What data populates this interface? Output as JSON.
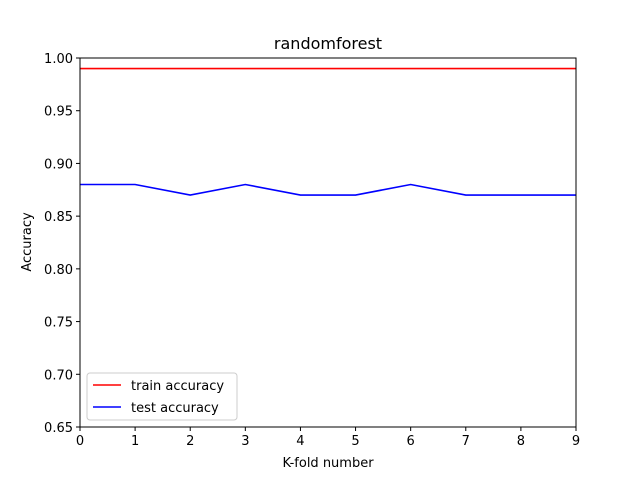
{
  "chart_data": {
    "type": "line",
    "title": "randomforest",
    "xlabel": "K-fold number",
    "ylabel": "Accuracy",
    "x": [
      0,
      1,
      2,
      3,
      4,
      5,
      6,
      7,
      8,
      9
    ],
    "xlim": [
      0,
      9
    ],
    "ylim": [
      0.65,
      1.0
    ],
    "xticks": [
      "0",
      "1",
      "2",
      "3",
      "4",
      "5",
      "6",
      "7",
      "8",
      "9"
    ],
    "yticks": [
      "0.65",
      "0.70",
      "0.75",
      "0.80",
      "0.85",
      "0.90",
      "0.95",
      "1.00"
    ],
    "grid": false,
    "legend_position": "lower-left",
    "series": [
      {
        "name": "train accuracy",
        "color": "#ff0000",
        "values": [
          0.99,
          0.99,
          0.99,
          0.99,
          0.99,
          0.99,
          0.99,
          0.99,
          0.99,
          0.99
        ]
      },
      {
        "name": "test accuracy",
        "color": "#0000ff",
        "values": [
          0.88,
          0.88,
          0.87,
          0.88,
          0.87,
          0.87,
          0.88,
          0.87,
          0.87,
          0.87
        ]
      }
    ]
  }
}
